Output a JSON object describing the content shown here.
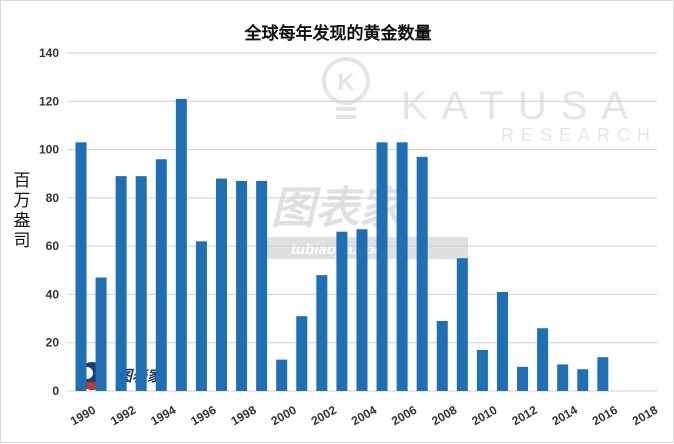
{
  "chart_data": {
    "type": "bar",
    "title": "全球每年发现的黄金数量",
    "ylabel": "百万盎司",
    "xlabel": "",
    "ylim": [
      0,
      140
    ],
    "yticks": [
      0,
      20,
      40,
      60,
      80,
      100,
      120,
      140
    ],
    "xtick_labels": [
      "1990",
      "1992",
      "1994",
      "1996",
      "1998",
      "2000",
      "2002",
      "2004",
      "2006",
      "2008",
      "2010",
      "2012",
      "2014",
      "2016",
      "2018"
    ],
    "categories": [
      1990,
      1991,
      1992,
      1993,
      1994,
      1995,
      1996,
      1997,
      1998,
      1999,
      2000,
      2001,
      2002,
      2003,
      2004,
      2005,
      2006,
      2007,
      2008,
      2009,
      2010,
      2011,
      2012,
      2013,
      2014,
      2015,
      2016
    ],
    "values": [
      103,
      47,
      89,
      89,
      96,
      121,
      62,
      88,
      87,
      87,
      13,
      31,
      48,
      66,
      67,
      103,
      103,
      97,
      29,
      55,
      17,
      41,
      10,
      26,
      11,
      9,
      14
    ],
    "grid": true,
    "bar_color": "#1f6fb5"
  },
  "watermarks": {
    "katusa": "KATUSA",
    "research": "RESEARCH",
    "tubiao": "图表家",
    "tubiao_url": "tubiaojia.com"
  }
}
